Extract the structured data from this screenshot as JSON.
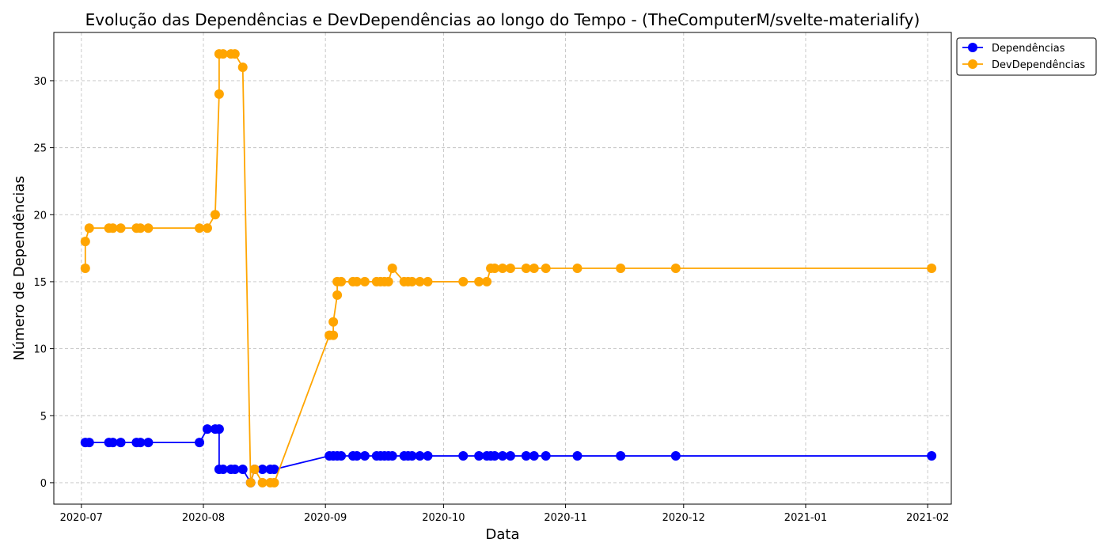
{
  "chart_data": {
    "type": "line",
    "title": "Evolução das Dependências e DevDependências ao longo do Tempo - (TheComputerM/svelte-materialify)",
    "xlabel": "Data",
    "ylabel": "Número de Dependências",
    "xlim": [
      "2020-06-24",
      "2021-02-07"
    ],
    "ylim": [
      -1.6,
      33.6
    ],
    "x_ticks": [
      "2020-07-01",
      "2020-08-01",
      "2020-09-01",
      "2020-10-01",
      "2020-11-01",
      "2020-12-01",
      "2021-01-01",
      "2021-02-01"
    ],
    "x_tick_labels": [
      "2020-07",
      "2020-08",
      "2020-09",
      "2020-10",
      "2020-11",
      "2020-12",
      "2021-01",
      "2021-02"
    ],
    "y_ticks": [
      0,
      5,
      10,
      15,
      20,
      25,
      30
    ],
    "y_tick_labels": [
      "0",
      "5",
      "10",
      "15",
      "20",
      "25",
      "30"
    ],
    "grid": true,
    "legend_position": "outside-top-right",
    "series": [
      {
        "name": "Dependências",
        "color": "#0000ff",
        "marker": "circle",
        "points": [
          [
            "2020-07-02",
            3
          ],
          [
            "2020-07-03",
            3
          ],
          [
            "2020-07-08",
            3
          ],
          [
            "2020-07-09",
            3
          ],
          [
            "2020-07-11",
            3
          ],
          [
            "2020-07-15",
            3
          ],
          [
            "2020-07-16",
            3
          ],
          [
            "2020-07-18",
            3
          ],
          [
            "2020-07-31",
            3
          ],
          [
            "2020-08-02",
            4
          ],
          [
            "2020-08-04",
            4
          ],
          [
            "2020-08-05",
            4
          ],
          [
            "2020-08-05",
            1
          ],
          [
            "2020-08-06",
            1
          ],
          [
            "2020-08-08",
            1
          ],
          [
            "2020-08-09",
            1
          ],
          [
            "2020-08-11",
            1
          ],
          [
            "2020-08-13",
            0
          ],
          [
            "2020-08-14",
            1
          ],
          [
            "2020-08-16",
            1
          ],
          [
            "2020-08-18",
            1
          ],
          [
            "2020-08-19",
            1
          ],
          [
            "2020-09-02",
            2
          ],
          [
            "2020-09-03",
            2
          ],
          [
            "2020-09-04",
            2
          ],
          [
            "2020-09-05",
            2
          ],
          [
            "2020-09-08",
            2
          ],
          [
            "2020-09-09",
            2
          ],
          [
            "2020-09-11",
            2
          ],
          [
            "2020-09-14",
            2
          ],
          [
            "2020-09-15",
            2
          ],
          [
            "2020-09-16",
            2
          ],
          [
            "2020-09-17",
            2
          ],
          [
            "2020-09-18",
            2
          ],
          [
            "2020-09-21",
            2
          ],
          [
            "2020-09-22",
            2
          ],
          [
            "2020-09-23",
            2
          ],
          [
            "2020-09-25",
            2
          ],
          [
            "2020-09-27",
            2
          ],
          [
            "2020-10-06",
            2
          ],
          [
            "2020-10-10",
            2
          ],
          [
            "2020-10-12",
            2
          ],
          [
            "2020-10-13",
            2
          ],
          [
            "2020-10-14",
            2
          ],
          [
            "2020-10-16",
            2
          ],
          [
            "2020-10-18",
            2
          ],
          [
            "2020-10-22",
            2
          ],
          [
            "2020-10-24",
            2
          ],
          [
            "2020-10-27",
            2
          ],
          [
            "2020-11-04",
            2
          ],
          [
            "2020-11-15",
            2
          ],
          [
            "2020-11-29",
            2
          ],
          [
            "2021-02-02",
            2
          ]
        ]
      },
      {
        "name": "DevDependências",
        "color": "#ffa500",
        "marker": "circle",
        "points": [
          [
            "2020-07-02",
            16
          ],
          [
            "2020-07-02",
            18
          ],
          [
            "2020-07-03",
            19
          ],
          [
            "2020-07-08",
            19
          ],
          [
            "2020-07-09",
            19
          ],
          [
            "2020-07-11",
            19
          ],
          [
            "2020-07-15",
            19
          ],
          [
            "2020-07-16",
            19
          ],
          [
            "2020-07-18",
            19
          ],
          [
            "2020-07-31",
            19
          ],
          [
            "2020-08-02",
            19
          ],
          [
            "2020-08-04",
            20
          ],
          [
            "2020-08-05",
            29
          ],
          [
            "2020-08-05",
            32
          ],
          [
            "2020-08-06",
            32
          ],
          [
            "2020-08-08",
            32
          ],
          [
            "2020-08-09",
            32
          ],
          [
            "2020-08-11",
            31
          ],
          [
            "2020-08-13",
            0
          ],
          [
            "2020-08-14",
            1
          ],
          [
            "2020-08-16",
            0
          ],
          [
            "2020-08-18",
            0
          ],
          [
            "2020-08-19",
            0
          ],
          [
            "2020-09-02",
            11
          ],
          [
            "2020-09-03",
            11
          ],
          [
            "2020-09-03",
            12
          ],
          [
            "2020-09-04",
            14
          ],
          [
            "2020-09-04",
            15
          ],
          [
            "2020-09-05",
            15
          ],
          [
            "2020-09-08",
            15
          ],
          [
            "2020-09-09",
            15
          ],
          [
            "2020-09-11",
            15
          ],
          [
            "2020-09-14",
            15
          ],
          [
            "2020-09-15",
            15
          ],
          [
            "2020-09-16",
            15
          ],
          [
            "2020-09-17",
            15
          ],
          [
            "2020-09-18",
            16
          ],
          [
            "2020-09-21",
            15
          ],
          [
            "2020-09-22",
            15
          ],
          [
            "2020-09-23",
            15
          ],
          [
            "2020-09-25",
            15
          ],
          [
            "2020-09-27",
            15
          ],
          [
            "2020-10-06",
            15
          ],
          [
            "2020-10-10",
            15
          ],
          [
            "2020-10-12",
            15
          ],
          [
            "2020-10-13",
            16
          ],
          [
            "2020-10-14",
            16
          ],
          [
            "2020-10-16",
            16
          ],
          [
            "2020-10-18",
            16
          ],
          [
            "2020-10-22",
            16
          ],
          [
            "2020-10-24",
            16
          ],
          [
            "2020-10-27",
            16
          ],
          [
            "2020-11-04",
            16
          ],
          [
            "2020-11-15",
            16
          ],
          [
            "2020-11-29",
            16
          ],
          [
            "2021-02-02",
            16
          ]
        ]
      }
    ]
  }
}
